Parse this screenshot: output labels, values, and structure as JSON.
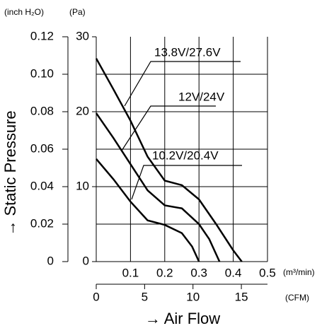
{
  "chart_data": {
    "type": "line",
    "y2_label": "(inch H₂O)",
    "y_unit": "(Pa)",
    "y_label": "→ Static Pressure",
    "x_unit": "(m³/min)",
    "x2_unit": "(CFM)",
    "x_label": "→ Air Flow",
    "xlim": [
      0,
      0.5
    ],
    "xticks": [
      0.1,
      0.2,
      0.3,
      0.4,
      0.5
    ],
    "x2lim": [
      0,
      17.7
    ],
    "x2ticks": [
      0,
      5,
      10,
      15
    ],
    "ylim": [
      0,
      30
    ],
    "yticks": [
      0,
      10,
      20,
      30
    ],
    "ygrid": [
      5,
      10,
      15,
      20,
      25
    ],
    "y2lim": [
      0,
      0.12
    ],
    "y2ticks": [
      0,
      0.02,
      0.04,
      0.06,
      0.08,
      {
        "value": 0.1,
        "label": "0.10"
      },
      0.12
    ],
    "color": "#000000",
    "series": [
      {
        "name": "13.8V/27.6V",
        "x": [
          0,
          0.05,
          0.1,
          0.15,
          0.2,
          0.25,
          0.3,
          0.35,
          0.4,
          0.425
        ],
        "values": [
          27.1,
          23,
          18.8,
          14,
          10.8,
          10.2,
          8.3,
          5,
          1.5,
          0
        ]
      },
      {
        "name": "12V/24V",
        "x": [
          0,
          0.05,
          0.1,
          0.15,
          0.2,
          0.25,
          0.3,
          0.33,
          0.36
        ],
        "values": [
          19.8,
          16.5,
          13,
          9.5,
          7.5,
          7.1,
          5,
          3,
          0
        ]
      },
      {
        "name": "10.2V/20.4V",
        "x": [
          0,
          0.05,
          0.1,
          0.15,
          0.2,
          0.25,
          0.28,
          0.3
        ],
        "values": [
          13.7,
          11,
          8,
          5.5,
          4.9,
          3.8,
          2,
          0
        ]
      }
    ]
  }
}
